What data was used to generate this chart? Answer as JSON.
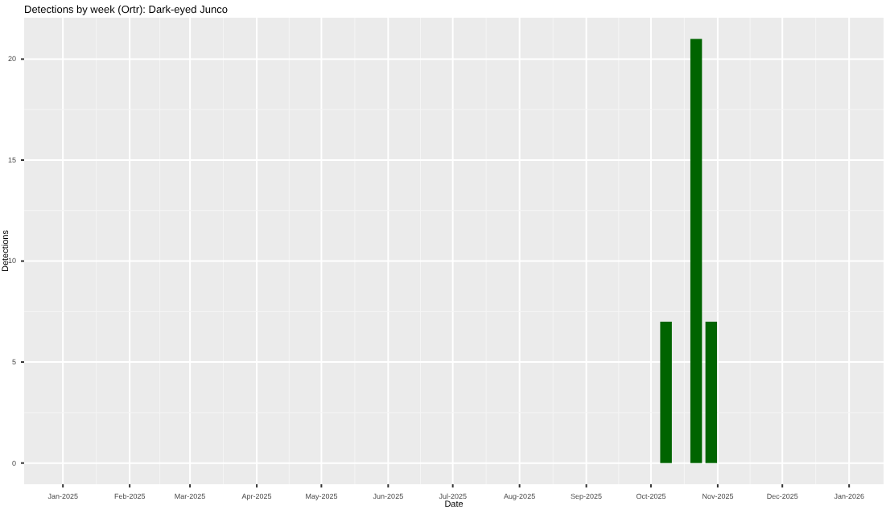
{
  "chart_data": {
    "type": "bar",
    "title": "Detections by week (Ortr): Dark-eyed Junco",
    "xlabel": "Date",
    "ylabel": "Detections",
    "x": [
      "2025-10-08",
      "2025-10-22",
      "2025-10-29"
    ],
    "values": [
      7,
      21,
      7
    ],
    "color": "#006400",
    "xlim": [
      "2024-12-14",
      "2026-01-17"
    ],
    "xticks": [
      {
        "value": "2025-01-01",
        "label": "Jan-2025"
      },
      {
        "value": "2025-02-01",
        "label": "Feb-2025"
      },
      {
        "value": "2025-03-01",
        "label": "Mar-2025"
      },
      {
        "value": "2025-04-01",
        "label": "Apr-2025"
      },
      {
        "value": "2025-05-01",
        "label": "May-2025"
      },
      {
        "value": "2025-06-01",
        "label": "Jun-2025"
      },
      {
        "value": "2025-07-01",
        "label": "Jul-2025"
      },
      {
        "value": "2025-08-01",
        "label": "Aug-2025"
      },
      {
        "value": "2025-09-01",
        "label": "Sep-2025"
      },
      {
        "value": "2025-10-01",
        "label": "Oct-2025"
      },
      {
        "value": "2025-11-01",
        "label": "Nov-2025"
      },
      {
        "value": "2025-12-01",
        "label": "Dec-2025"
      },
      {
        "value": "2026-01-01",
        "label": "Jan-2026"
      }
    ],
    "ylim": [
      -1.05,
      22.05
    ],
    "yticks": [
      0,
      5,
      10,
      15,
      20
    ],
    "grid": true
  }
}
